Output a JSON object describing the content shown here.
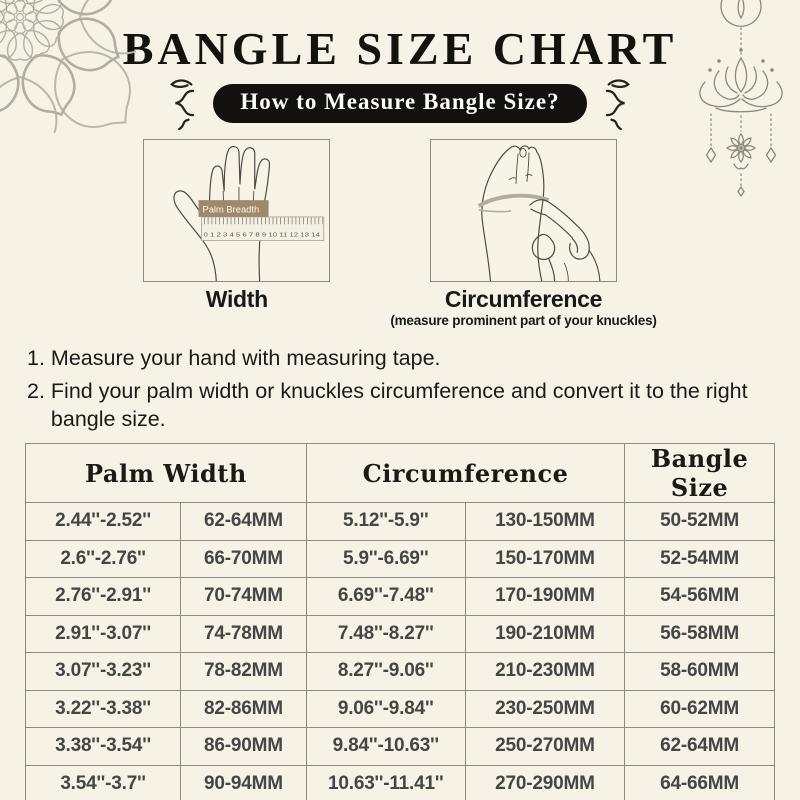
{
  "header": {
    "title": "BANGLE SIZE CHART",
    "badge": "How to Measure Bangle Size?"
  },
  "figures": {
    "width": {
      "label": "Width",
      "ruler_label": "Palm Breadth",
      "ruler_numbers": "0 1 2 3 4 5 6 7 8 9 10 11 12 13 14"
    },
    "circumference": {
      "label": "Circumference",
      "sublabel": "(measure prominent part of your knuckles)"
    }
  },
  "instructions": [
    {
      "num": "1. ",
      "text": "Measure your hand with measuring tape."
    },
    {
      "num": "2. ",
      "text": "Find your palm width or knuckles circumference and convert it to the right bangle size."
    }
  ],
  "table": {
    "headers": [
      "Palm Width",
      "Circumference",
      "Bangle Size"
    ],
    "rows": [
      [
        "2.44''-2.52''",
        "62-64MM",
        "5.12''-5.9''",
        "130-150MM",
        "50-52MM"
      ],
      [
        "2.6''-2.76''",
        "66-70MM",
        "5.9''-6.69''",
        "150-170MM",
        "52-54MM"
      ],
      [
        "2.76''-2.91''",
        "70-74MM",
        "6.69''-7.48''",
        "170-190MM",
        "54-56MM"
      ],
      [
        "2.91''-3.07''",
        "74-78MM",
        "7.48''-8.27''",
        "190-210MM",
        "56-58MM"
      ],
      [
        "3.07''-3.23''",
        "78-82MM",
        "8.27''-9.06''",
        "210-230MM",
        "58-60MM"
      ],
      [
        "3.22''-3.38''",
        "82-86MM",
        "9.06''-9.84''",
        "230-250MM",
        "60-62MM"
      ],
      [
        "3.38''-3.54''",
        "86-90MM",
        "9.84''-10.63''",
        "250-270MM",
        "62-64MM"
      ],
      [
        "3.54''-3.7''",
        "90-94MM",
        "10.63''-11.41''",
        "270-290MM",
        "64-66MM"
      ]
    ]
  },
  "colors": {
    "background": "#f6f2e5",
    "badge_black": "#121110",
    "table_border": "#8d8b84",
    "decoration_gray": "#b3aea4",
    "lotus_gray": "#8d887c",
    "ruler_label_tan": "#a0896b"
  }
}
